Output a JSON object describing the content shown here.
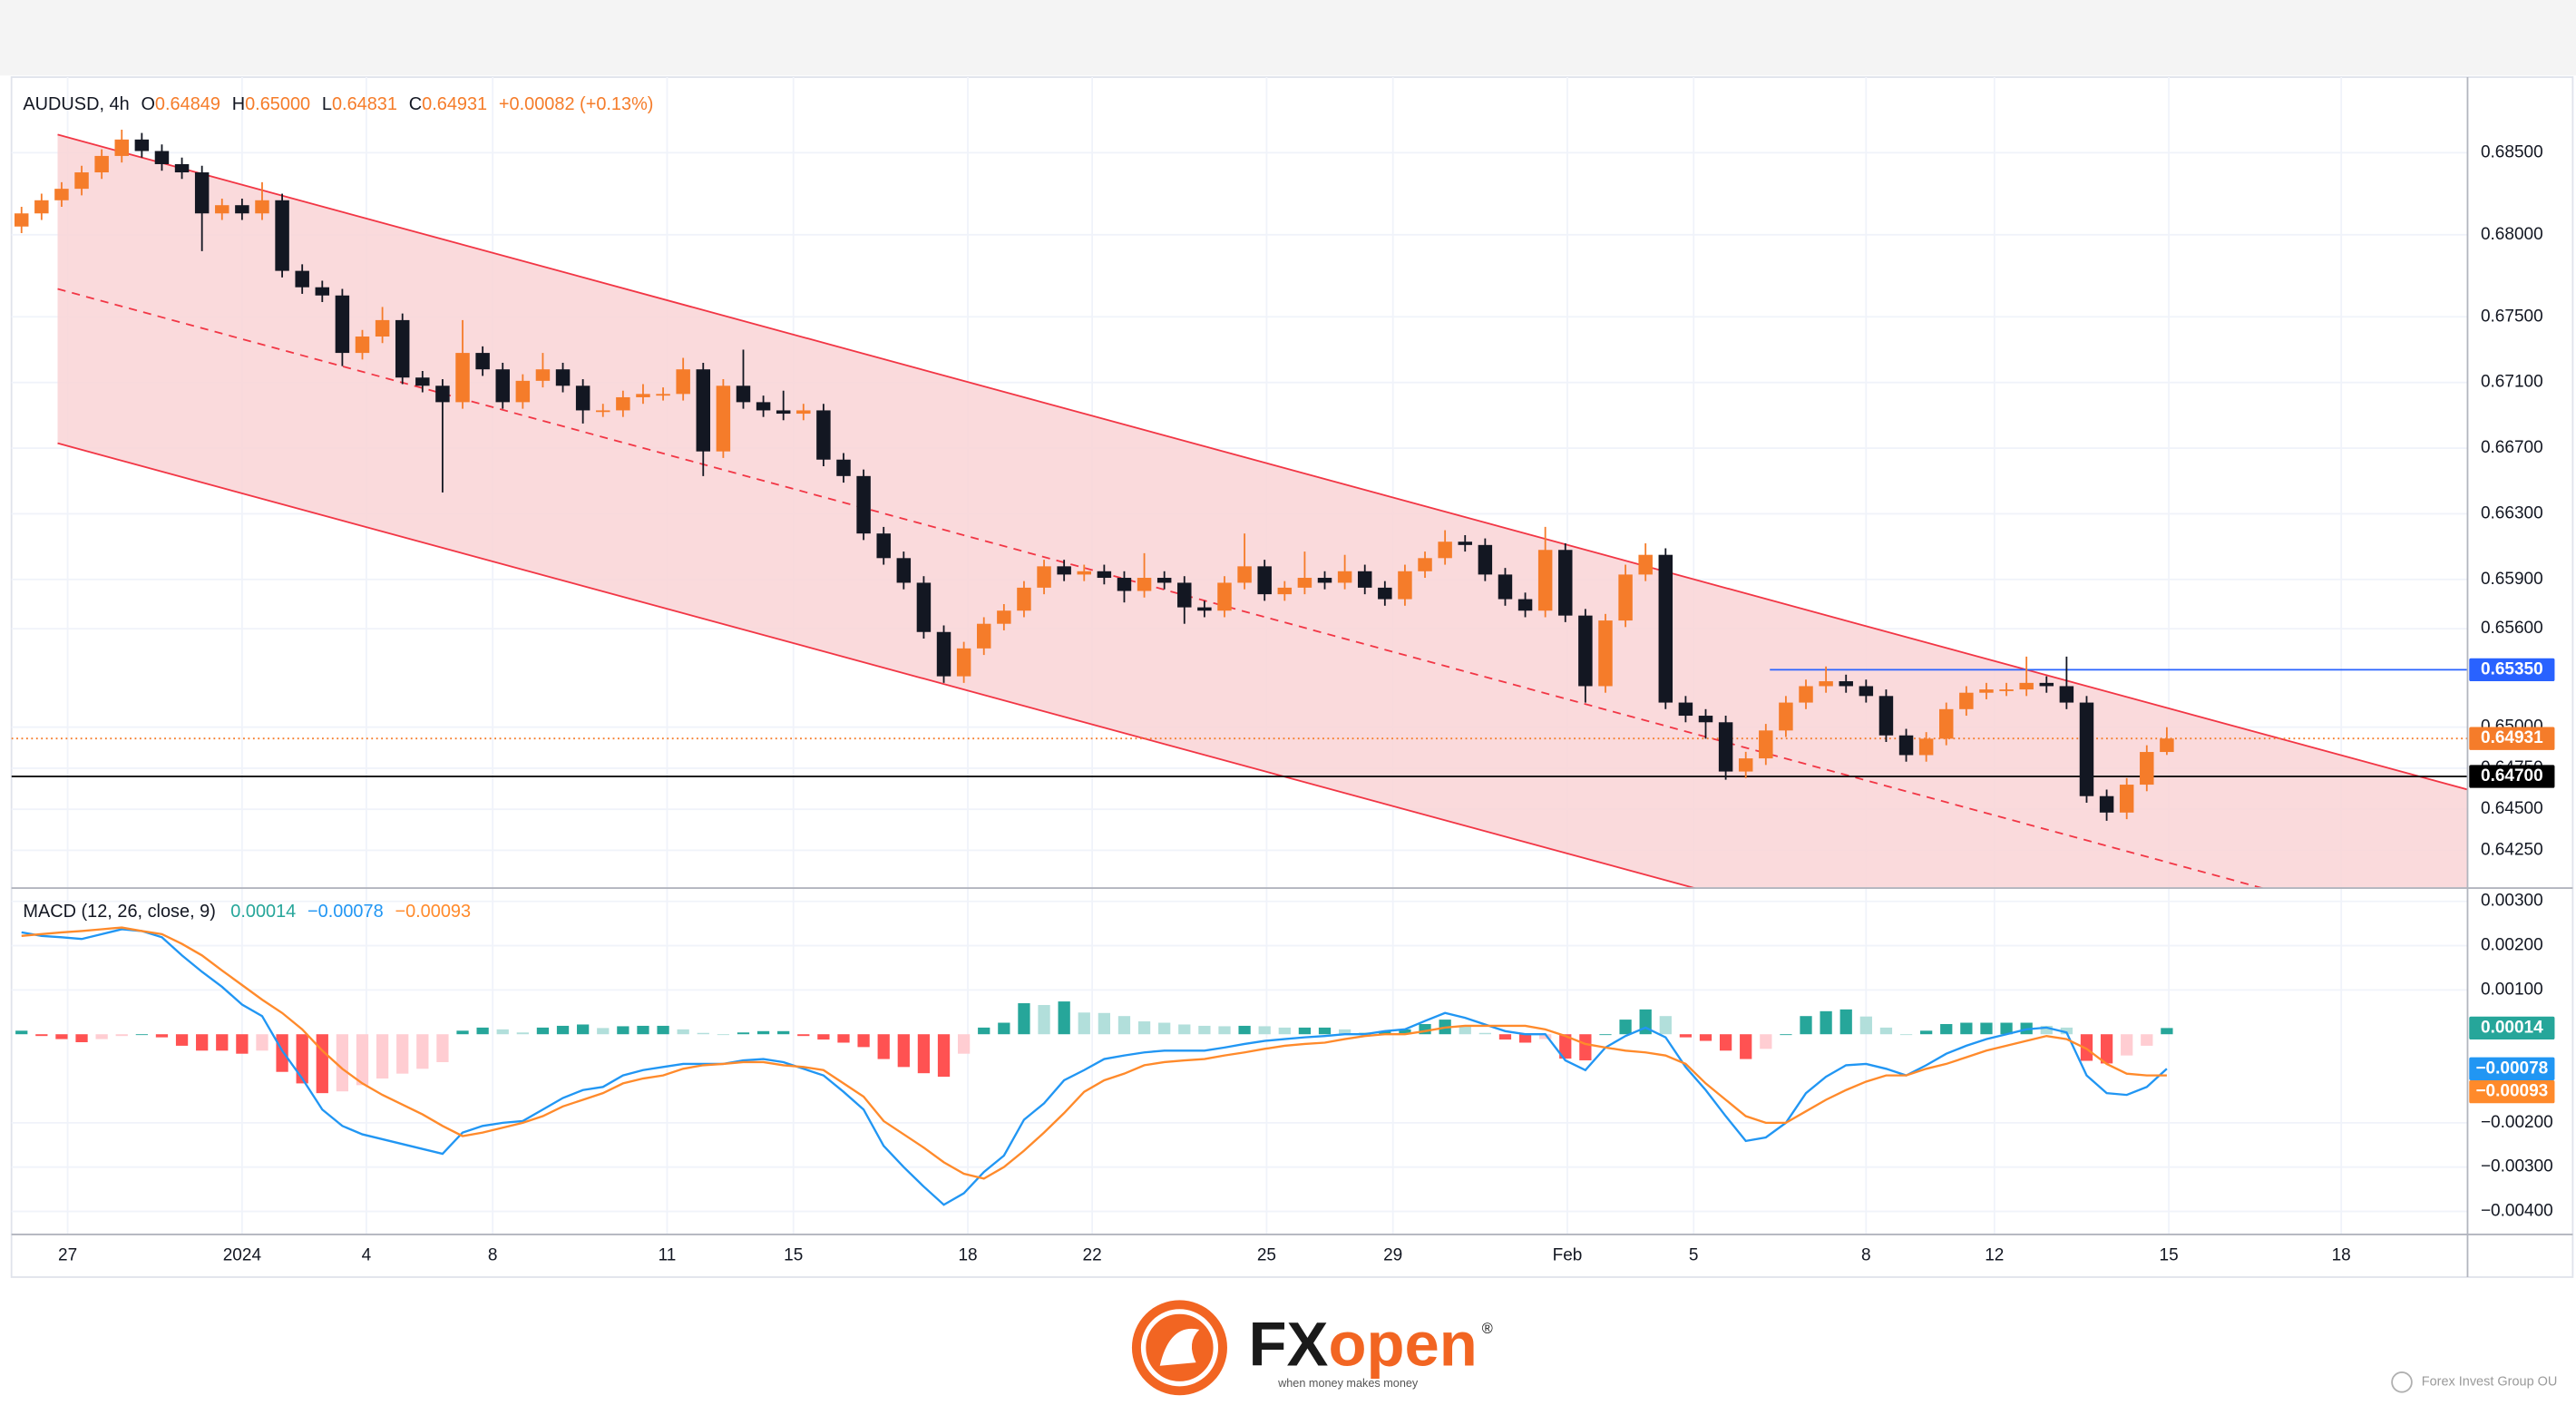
{
  "header": {
    "symbol": "AUDUSD, 4h",
    "fields": [
      {
        "key": "O",
        "value": "0.64849"
      },
      {
        "key": "H",
        "value": "0.65000"
      },
      {
        "key": "L",
        "value": "0.64831"
      },
      {
        "key": "C",
        "value": "0.64931"
      }
    ],
    "change": "+0.00082 (+0.13%)"
  },
  "chart_data": [
    {
      "type": "candlestick",
      "open": [
        0.6805,
        0.6813,
        0.6821,
        0.6828,
        0.6838,
        0.6848,
        0.6858,
        0.6851,
        0.6843,
        0.6838,
        0.6813,
        0.6818,
        0.6813,
        0.6821,
        0.6778,
        0.6768,
        0.6763,
        0.6728,
        0.6738,
        0.6748,
        0.6713,
        0.6708,
        0.6698,
        0.6728,
        0.6718,
        0.6698,
        0.6711,
        0.6718,
        0.6708,
        0.6693,
        0.6693,
        0.6701,
        0.6703,
        0.6703,
        0.6718,
        0.6668,
        0.6708,
        0.6698,
        0.6693,
        0.6691,
        0.6693,
        0.6663,
        0.6653,
        0.6618,
        0.6603,
        0.6588,
        0.6558,
        0.6531,
        0.6548,
        0.6563,
        0.6571,
        0.6585,
        0.6598,
        0.6593,
        0.6595,
        0.6591,
        0.6583,
        0.6591,
        0.6588,
        0.6573,
        0.6571,
        0.6588,
        0.6598,
        0.6581,
        0.6585,
        0.6591,
        0.6588,
        0.6595,
        0.6585,
        0.6578,
        0.6595,
        0.6603,
        0.6613,
        0.6611,
        0.6593,
        0.6578,
        0.6571,
        0.6608,
        0.6568,
        0.6525,
        0.6565,
        0.6593,
        0.6605,
        0.6515,
        0.6507,
        0.6503,
        0.6473,
        0.6481,
        0.6498,
        0.6515,
        0.6525,
        0.6528,
        0.6525,
        0.6519,
        0.6495,
        0.6483,
        0.6493,
        0.6511,
        0.6521,
        0.6523,
        0.6523,
        0.6527,
        0.6525,
        0.6515,
        0.6458,
        0.6448,
        0.6465,
        0.64849
      ],
      "high": [
        0.6817,
        0.6825,
        0.6832,
        0.6842,
        0.6852,
        0.6864,
        0.6862,
        0.6855,
        0.6847,
        0.6842,
        0.6822,
        0.6822,
        0.6832,
        0.6825,
        0.6782,
        0.6772,
        0.6767,
        0.6742,
        0.6756,
        0.6752,
        0.6717,
        0.6712,
        0.6748,
        0.6732,
        0.6722,
        0.6715,
        0.6728,
        0.6722,
        0.6712,
        0.6697,
        0.6705,
        0.6709,
        0.6707,
        0.6725,
        0.6722,
        0.6712,
        0.673,
        0.6702,
        0.6705,
        0.6697,
        0.6697,
        0.6667,
        0.6657,
        0.6622,
        0.6607,
        0.6592,
        0.6562,
        0.6552,
        0.6567,
        0.6575,
        0.6589,
        0.6602,
        0.6602,
        0.6599,
        0.6599,
        0.6595,
        0.6606,
        0.6595,
        0.6592,
        0.6577,
        0.6592,
        0.6618,
        0.6602,
        0.6589,
        0.6607,
        0.6595,
        0.6605,
        0.6599,
        0.6589,
        0.6599,
        0.6607,
        0.662,
        0.6617,
        0.6615,
        0.6597,
        0.6582,
        0.6622,
        0.6612,
        0.6572,
        0.6569,
        0.6599,
        0.6612,
        0.6609,
        0.6519,
        0.6511,
        0.6507,
        0.6485,
        0.6502,
        0.6519,
        0.6529,
        0.6537,
        0.6532,
        0.6529,
        0.6523,
        0.6499,
        0.6497,
        0.6515,
        0.6525,
        0.6527,
        0.6527,
        0.6543,
        0.6531,
        0.6543,
        0.6519,
        0.6462,
        0.6469,
        0.6489,
        0.65
      ],
      "low": [
        0.6801,
        0.6809,
        0.6817,
        0.6824,
        0.6834,
        0.6844,
        0.6847,
        0.6839,
        0.6834,
        0.679,
        0.6809,
        0.6809,
        0.6809,
        0.6774,
        0.6764,
        0.6759,
        0.672,
        0.6724,
        0.6734,
        0.6709,
        0.6704,
        0.6643,
        0.6694,
        0.6714,
        0.6694,
        0.6694,
        0.6707,
        0.6704,
        0.6685,
        0.6689,
        0.6689,
        0.6697,
        0.6699,
        0.6699,
        0.6653,
        0.6664,
        0.6694,
        0.6689,
        0.6687,
        0.6687,
        0.6659,
        0.6649,
        0.6614,
        0.6599,
        0.6584,
        0.6554,
        0.6527,
        0.6527,
        0.6544,
        0.6559,
        0.6567,
        0.6581,
        0.6589,
        0.6589,
        0.6587,
        0.6576,
        0.6579,
        0.6584,
        0.6563,
        0.6567,
        0.6567,
        0.6584,
        0.6577,
        0.6577,
        0.6581,
        0.6584,
        0.6584,
        0.6581,
        0.6574,
        0.6574,
        0.6591,
        0.6599,
        0.6607,
        0.6589,
        0.6574,
        0.6567,
        0.6567,
        0.6564,
        0.6515,
        0.6521,
        0.6561,
        0.6589,
        0.6511,
        0.6503,
        0.6493,
        0.6468,
        0.6469,
        0.6477,
        0.6494,
        0.6511,
        0.6521,
        0.6521,
        0.6515,
        0.6491,
        0.6479,
        0.6479,
        0.6489,
        0.6507,
        0.6517,
        0.6519,
        0.6519,
        0.6521,
        0.6511,
        0.6454,
        0.6443,
        0.6444,
        0.6461,
        0.64831
      ],
      "close": [
        0.6813,
        0.6821,
        0.6828,
        0.6838,
        0.6848,
        0.6858,
        0.6851,
        0.6843,
        0.6838,
        0.6813,
        0.6818,
        0.6813,
        0.6821,
        0.6778,
        0.6768,
        0.6763,
        0.6728,
        0.6738,
        0.6748,
        0.6713,
        0.6708,
        0.6698,
        0.6728,
        0.6718,
        0.6698,
        0.6711,
        0.6718,
        0.6708,
        0.6693,
        0.6693,
        0.6701,
        0.6703,
        0.6703,
        0.6718,
        0.6668,
        0.6708,
        0.6698,
        0.6693,
        0.6691,
        0.6693,
        0.6663,
        0.6653,
        0.6618,
        0.6603,
        0.6588,
        0.6558,
        0.6531,
        0.6548,
        0.6563,
        0.6571,
        0.6585,
        0.6598,
        0.6593,
        0.6595,
        0.6591,
        0.6583,
        0.6591,
        0.6588,
        0.6573,
        0.6571,
        0.6588,
        0.6598,
        0.6581,
        0.6585,
        0.6591,
        0.6588,
        0.6595,
        0.6585,
        0.6578,
        0.6595,
        0.6603,
        0.6613,
        0.6611,
        0.6593,
        0.6578,
        0.6571,
        0.6608,
        0.6568,
        0.6525,
        0.6565,
        0.6593,
        0.6605,
        0.6515,
        0.6507,
        0.6503,
        0.6473,
        0.6481,
        0.6498,
        0.6515,
        0.6525,
        0.6528,
        0.6525,
        0.6519,
        0.6495,
        0.6483,
        0.6493,
        0.6511,
        0.6521,
        0.6523,
        0.6523,
        0.6527,
        0.6525,
        0.6515,
        0.6458,
        0.6448,
        0.6465,
        0.64849,
        0.64931
      ],
      "up_color": "#f57c2a",
      "down_color": "#131722",
      "xlim": [
        -0.5,
        122
      ],
      "xticks": [
        {
          "value": 2.3,
          "label": "27"
        },
        {
          "value": 11.0,
          "label": "2024"
        },
        {
          "value": 17.2,
          "label": "4"
        },
        {
          "value": 23.5,
          "label": "8"
        },
        {
          "value": 32.2,
          "label": "11"
        },
        {
          "value": 38.5,
          "label": "15"
        },
        {
          "value": 47.2,
          "label": "18"
        },
        {
          "value": 53.4,
          "label": "22"
        },
        {
          "value": 62.1,
          "label": "25"
        },
        {
          "value": 68.4,
          "label": "29"
        },
        {
          "value": 77.1,
          "label": "Feb"
        },
        {
          "value": 83.4,
          "label": "5"
        },
        {
          "value": 92.0,
          "label": "8"
        },
        {
          "value": 98.4,
          "label": "12"
        },
        {
          "value": 107.1,
          "label": "15"
        },
        {
          "value": 115.7,
          "label": "18"
        }
      ],
      "ylim": [
        0.6402,
        0.6896
      ],
      "yticks": [
        {
          "value": 0.685,
          "label": "0.68500"
        },
        {
          "value": 0.68,
          "label": "0.68000"
        },
        {
          "value": 0.675,
          "label": "0.67500"
        },
        {
          "value": 0.671,
          "label": "0.67100"
        },
        {
          "value": 0.667,
          "label": "0.66700"
        },
        {
          "value": 0.663,
          "label": "0.66300"
        },
        {
          "value": 0.659,
          "label": "0.65900"
        },
        {
          "value": 0.656,
          "label": "0.65600"
        },
        {
          "value": 0.65,
          "label": "0.65000"
        },
        {
          "value": 0.6475,
          "label": "0.64750"
        },
        {
          "value": 0.645,
          "label": "0.64500"
        },
        {
          "value": 0.6425,
          "label": "0.64250"
        }
      ],
      "grid": true,
      "channel": {
        "x": [
          1.8,
          122
        ],
        "upper": [
          0.6861,
          0.6462
        ],
        "mid": [
          0.6767,
          0.6368
        ],
        "lower": [
          0.6673,
          0.6274
        ],
        "color": "#f23645",
        "fill": "#f9d3d6"
      },
      "levels": [
        {
          "value": 0.6535,
          "label": "0.65350",
          "color": "#2962ff",
          "from": 87.2
        },
        {
          "value": 0.647,
          "label": "0.64700",
          "color": "#000000",
          "from": -0.5
        },
        {
          "value": 0.64931,
          "label": "0.64931",
          "color": "#f57c2a",
          "from": -0.5,
          "dotted": true
        }
      ]
    },
    {
      "type": "macd",
      "title": "MACD (12, 26, close, 9)",
      "xlim": [
        -0.5,
        122
      ],
      "ylim": [
        -0.00452,
        0.0033
      ],
      "yticks": [
        {
          "value": 0.003,
          "label": "0.00300"
        },
        {
          "value": 0.002,
          "label": "0.00200"
        },
        {
          "value": 0.001,
          "label": "0.00100"
        },
        {
          "value": -0.002,
          "label": "−0.00200"
        },
        {
          "value": -0.003,
          "label": "−0.00300"
        },
        {
          "value": -0.004,
          "label": "−0.00400"
        }
      ],
      "histogram": {
        "colors": [
          "#26a69a",
          "#b2dfdb",
          "#ff5252",
          "#ffcdd2"
        ],
        "values": [
          8e-05,
          -4e-05,
          -0.00011,
          -0.00018,
          -0.00011,
          -4e-05,
          0,
          -7e-05,
          -0.00026,
          -0.00037,
          -0.00037,
          -0.00044,
          -0.00037,
          -0.00085,
          -0.00111,
          -0.00133,
          -0.00129,
          -0.00115,
          -0.001,
          -0.00089,
          -0.00078,
          -0.00063,
          8e-05,
          0.00015,
          0.00011,
          4e-05,
          0.00015,
          0.00019,
          0.00022,
          0.00014,
          0.00018,
          0.00019,
          0.00019,
          0.00011,
          3e-05,
          0,
          4e-05,
          7e-05,
          7e-05,
          -4e-05,
          -0.00012,
          -0.00019,
          -0.00029,
          -0.00056,
          -0.00074,
          -0.00088,
          -0.00096,
          -0.00044,
          0.00015,
          0.00026,
          0.0007,
          0.00066,
          0.00074,
          0.00049,
          0.00048,
          0.00041,
          0.00029,
          0.00026,
          0.00022,
          0.00019,
          0.00018,
          0.00019,
          0.00018,
          0.00015,
          0.00015,
          0.00015,
          0.00011,
          4e-05,
          7e-05,
          0.00011,
          0.00023,
          0.00033,
          0.00018,
          3e-05,
          -0.00012,
          -0.00019,
          -0.00011,
          -0.00055,
          -0.00059,
          0,
          0.00033,
          0.00056,
          0.00041,
          -7e-05,
          -0.00015,
          -0.00037,
          -0.00056,
          -0.00033,
          0,
          0.00041,
          0.00052,
          0.00056,
          0.0004,
          0.00015,
          0,
          8e-05,
          0.00023,
          0.00026,
          0.00026,
          0.00026,
          0.00026,
          0.00019,
          0.00015,
          -0.0006,
          -0.00066,
          -0.00048,
          -0.00026,
          0.00014
        ],
        "value_label": "0.00014"
      },
      "series": [
        {
          "color": "#2196f3",
          "value_label": "−0.00078",
          "values": [
            0.0023,
            0.00222,
            0.00219,
            0.00215,
            0.00226,
            0.00237,
            0.00233,
            0.00219,
            0.00178,
            0.00141,
            0.00107,
            0.00067,
            0.00041,
            -0.00037,
            -0.001,
            -0.0017,
            -0.00207,
            -0.00226,
            -0.00237,
            -0.00248,
            -0.00259,
            -0.0027,
            -0.00222,
            -0.00207,
            -0.002,
            -0.00196,
            -0.0017,
            -0.00144,
            -0.00126,
            -0.00119,
            -0.00093,
            -0.00081,
            -0.00074,
            -0.00067,
            -0.00067,
            -0.00067,
            -0.00059,
            -0.00056,
            -0.00063,
            -0.00078,
            -0.00093,
            -0.0013,
            -0.0017,
            -0.00252,
            -0.003,
            -0.00344,
            -0.00385,
            -0.00359,
            -0.00311,
            -0.00274,
            -0.00193,
            -0.00156,
            -0.00104,
            -0.00081,
            -0.00056,
            -0.00048,
            -0.00041,
            -0.00037,
            -0.00037,
            -0.00037,
            -0.0003,
            -0.00022,
            -0.00015,
            -0.00011,
            -7e-05,
            -4e-05,
            0,
            0,
            7e-05,
            0.00011,
            0.0003,
            0.00048,
            0.00037,
            0.00022,
            7e-05,
            0,
            0,
            -0.00059,
            -0.00081,
            -0.0003,
            -4e-05,
            0.00015,
            -7e-05,
            -0.00074,
            -0.00126,
            -0.00185,
            -0.00241,
            -0.00233,
            -0.002,
            -0.00133,
            -0.00096,
            -0.0007,
            -0.00067,
            -0.00078,
            -0.00093,
            -0.0007,
            -0.00044,
            -0.00026,
            -0.00011,
            0,
            0.00011,
            0.00015,
            4e-05,
            -0.00093,
            -0.00133,
            -0.00137,
            -0.00119,
            -0.00078
          ]
        },
        {
          "color": "#ff8a2b",
          "value_label": "−0.00093",
          "values": [
            0.00222,
            0.00226,
            0.0023,
            0.00233,
            0.00237,
            0.00241,
            0.00233,
            0.00226,
            0.00204,
            0.00178,
            0.00144,
            0.00111,
            0.00078,
            0.00048,
            0.00011,
            -0.00037,
            -0.00078,
            -0.00111,
            -0.00137,
            -0.00159,
            -0.00181,
            -0.00207,
            -0.0023,
            -0.00222,
            -0.00211,
            -0.002,
            -0.00185,
            -0.00163,
            -0.00148,
            -0.00133,
            -0.00111,
            -0.001,
            -0.00093,
            -0.00078,
            -0.0007,
            -0.00067,
            -0.00063,
            -0.00063,
            -0.0007,
            -0.00074,
            -0.00081,
            -0.00111,
            -0.00141,
            -0.00196,
            -0.00226,
            -0.00256,
            -0.00289,
            -0.00315,
            -0.00326,
            -0.003,
            -0.00263,
            -0.00222,
            -0.00178,
            -0.0013,
            -0.00104,
            -0.00089,
            -0.0007,
            -0.00063,
            -0.00059,
            -0.00056,
            -0.00048,
            -0.00041,
            -0.00033,
            -0.00026,
            -0.00022,
            -0.00019,
            -0.00011,
            -4e-05,
            0,
            0,
            7e-05,
            0.00015,
            0.00019,
            0.00019,
            0.00019,
            0.00019,
            0.00011,
            -4e-05,
            -0.00022,
            -0.0003,
            -0.00037,
            -0.00041,
            -0.00048,
            -0.00067,
            -0.00111,
            -0.00148,
            -0.00185,
            -0.002,
            -0.002,
            -0.00174,
            -0.00148,
            -0.00126,
            -0.00107,
            -0.00093,
            -0.00093,
            -0.00078,
            -0.00067,
            -0.00052,
            -0.00037,
            -0.00026,
            -0.00015,
            -4e-05,
            -0.00011,
            -0.00033,
            -0.00067,
            -0.00089,
            -0.00093,
            -0.00093
          ]
        }
      ]
    }
  ],
  "footer": {
    "brand_fx": "FX",
    "brand_open": "open",
    "registered": "®",
    "tagline": "when money makes money",
    "watermark": "Forex Invest Group OU"
  }
}
